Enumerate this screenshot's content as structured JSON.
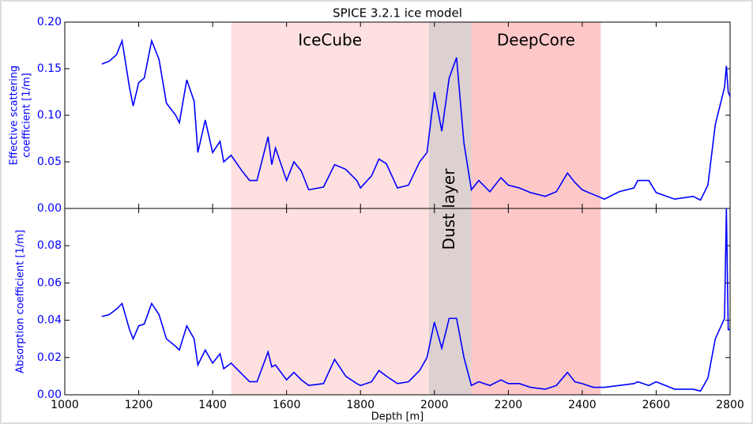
{
  "chart_data": [
    {
      "type": "line",
      "title": "SPICE 3.2.1  ice model",
      "ylabel": [
        "Effective scattering",
        "coefficient [1/m]"
      ],
      "x": [
        1100,
        1120,
        1140,
        1155,
        1175,
        1185,
        1200,
        1215,
        1235,
        1255,
        1275,
        1300,
        1310,
        1330,
        1350,
        1360,
        1380,
        1400,
        1420,
        1430,
        1450,
        1480,
        1500,
        1520,
        1550,
        1560,
        1570,
        1600,
        1620,
        1640,
        1660,
        1700,
        1730,
        1760,
        1790,
        1800,
        1830,
        1850,
        1870,
        1900,
        1930,
        1960,
        1980,
        2000,
        2020,
        2040,
        2060,
        2080,
        2100,
        2120,
        2150,
        2180,
        2200,
        2230,
        2260,
        2300,
        2330,
        2360,
        2380,
        2400,
        2430,
        2460,
        2500,
        2540,
        2550,
        2580,
        2600,
        2650,
        2700,
        2720,
        2740,
        2760,
        2785,
        2790,
        2795,
        2800
      ],
      "series": [
        {
          "color": "#0000ff",
          "values": [
            0.155,
            0.158,
            0.165,
            0.18,
            0.13,
            0.11,
            0.135,
            0.14,
            0.18,
            0.16,
            0.113,
            0.1,
            0.092,
            0.138,
            0.115,
            0.06,
            0.095,
            0.06,
            0.072,
            0.05,
            0.057,
            0.04,
            0.03,
            0.03,
            0.077,
            0.047,
            0.065,
            0.03,
            0.05,
            0.04,
            0.02,
            0.023,
            0.047,
            0.042,
            0.03,
            0.022,
            0.035,
            0.053,
            0.048,
            0.022,
            0.025,
            0.05,
            0.06,
            0.125,
            0.083,
            0.14,
            0.162,
            0.07,
            0.02,
            0.03,
            0.018,
            0.033,
            0.025,
            0.022,
            0.017,
            0.013,
            0.018,
            0.038,
            0.028,
            0.02,
            0.015,
            0.01,
            0.018,
            0.022,
            0.03,
            0.03,
            0.017,
            0.01,
            0.013,
            0.009,
            0.025,
            0.09,
            0.13,
            0.153,
            0.125,
            0.12
          ]
        }
      ],
      "xlim": [
        1000,
        2800
      ],
      "ylim": [
        0,
        0.2
      ],
      "yticks": [
        {
          "value": 0,
          "label": "0.00"
        },
        {
          "value": 0.05,
          "label": "0.05"
        },
        {
          "value": 0.1,
          "label": "0.10"
        },
        {
          "value": 0.15,
          "label": "0.15"
        },
        {
          "value": 0.2,
          "label": "0.20"
        }
      ],
      "regions": [
        {
          "label": "IceCube",
          "xlim": [
            1450,
            1985
          ],
          "color": "#ffe0e0"
        },
        {
          "label": "Dust layer",
          "xlim": [
            1985,
            2100
          ],
          "color": "#dcd0d0"
        },
        {
          "label": "DeepCore",
          "xlim": [
            2100,
            2450
          ],
          "color": "#ffc8c8"
        }
      ]
    },
    {
      "type": "line",
      "ylabel": [
        "Absorption coefficient [1/m]"
      ],
      "xlabel": "Depth [m]",
      "x": [
        1100,
        1120,
        1140,
        1155,
        1175,
        1185,
        1200,
        1215,
        1235,
        1255,
        1275,
        1300,
        1310,
        1330,
        1350,
        1360,
        1380,
        1400,
        1420,
        1430,
        1450,
        1480,
        1500,
        1520,
        1550,
        1560,
        1570,
        1600,
        1620,
        1640,
        1660,
        1700,
        1730,
        1760,
        1790,
        1800,
        1830,
        1850,
        1870,
        1900,
        1930,
        1960,
        1980,
        2000,
        2020,
        2040,
        2060,
        2080,
        2100,
        2120,
        2150,
        2180,
        2200,
        2230,
        2260,
        2300,
        2330,
        2360,
        2380,
        2400,
        2430,
        2460,
        2500,
        2540,
        2550,
        2580,
        2600,
        2650,
        2700,
        2720,
        2740,
        2760,
        2785,
        2790,
        2795,
        2800
      ],
      "series": [
        {
          "color": "#0000ff",
          "values": [
            0.042,
            0.043,
            0.046,
            0.049,
            0.035,
            0.03,
            0.037,
            0.038,
            0.049,
            0.043,
            0.03,
            0.026,
            0.024,
            0.037,
            0.03,
            0.016,
            0.024,
            0.017,
            0.022,
            0.014,
            0.017,
            0.011,
            0.007,
            0.007,
            0.023,
            0.015,
            0.016,
            0.008,
            0.012,
            0.008,
            0.005,
            0.006,
            0.019,
            0.01,
            0.006,
            0.005,
            0.007,
            0.013,
            0.01,
            0.006,
            0.007,
            0.013,
            0.02,
            0.039,
            0.025,
            0.041,
            0.041,
            0.02,
            0.005,
            0.007,
            0.005,
            0.008,
            0.006,
            0.006,
            0.004,
            0.003,
            0.005,
            0.012,
            0.007,
            0.006,
            0.004,
            0.004,
            0.005,
            0.006,
            0.007,
            0.005,
            0.007,
            0.003,
            0.003,
            0.002,
            0.009,
            0.03,
            0.041,
            0.1,
            0.035,
            0.035
          ]
        }
      ],
      "xlim": [
        1000,
        2800
      ],
      "ylim": [
        0,
        0.1
      ],
      "xticks": [
        1000,
        1200,
        1400,
        1600,
        1800,
        2000,
        2200,
        2400,
        2600,
        2800
      ],
      "yticks": [
        {
          "value": 0,
          "label": "0.00"
        },
        {
          "value": 0.02,
          "label": "0.02"
        },
        {
          "value": 0.04,
          "label": "0.04"
        },
        {
          "value": 0.06,
          "label": "0.06"
        },
        {
          "value": 0.08,
          "label": "0.08"
        }
      ]
    }
  ]
}
